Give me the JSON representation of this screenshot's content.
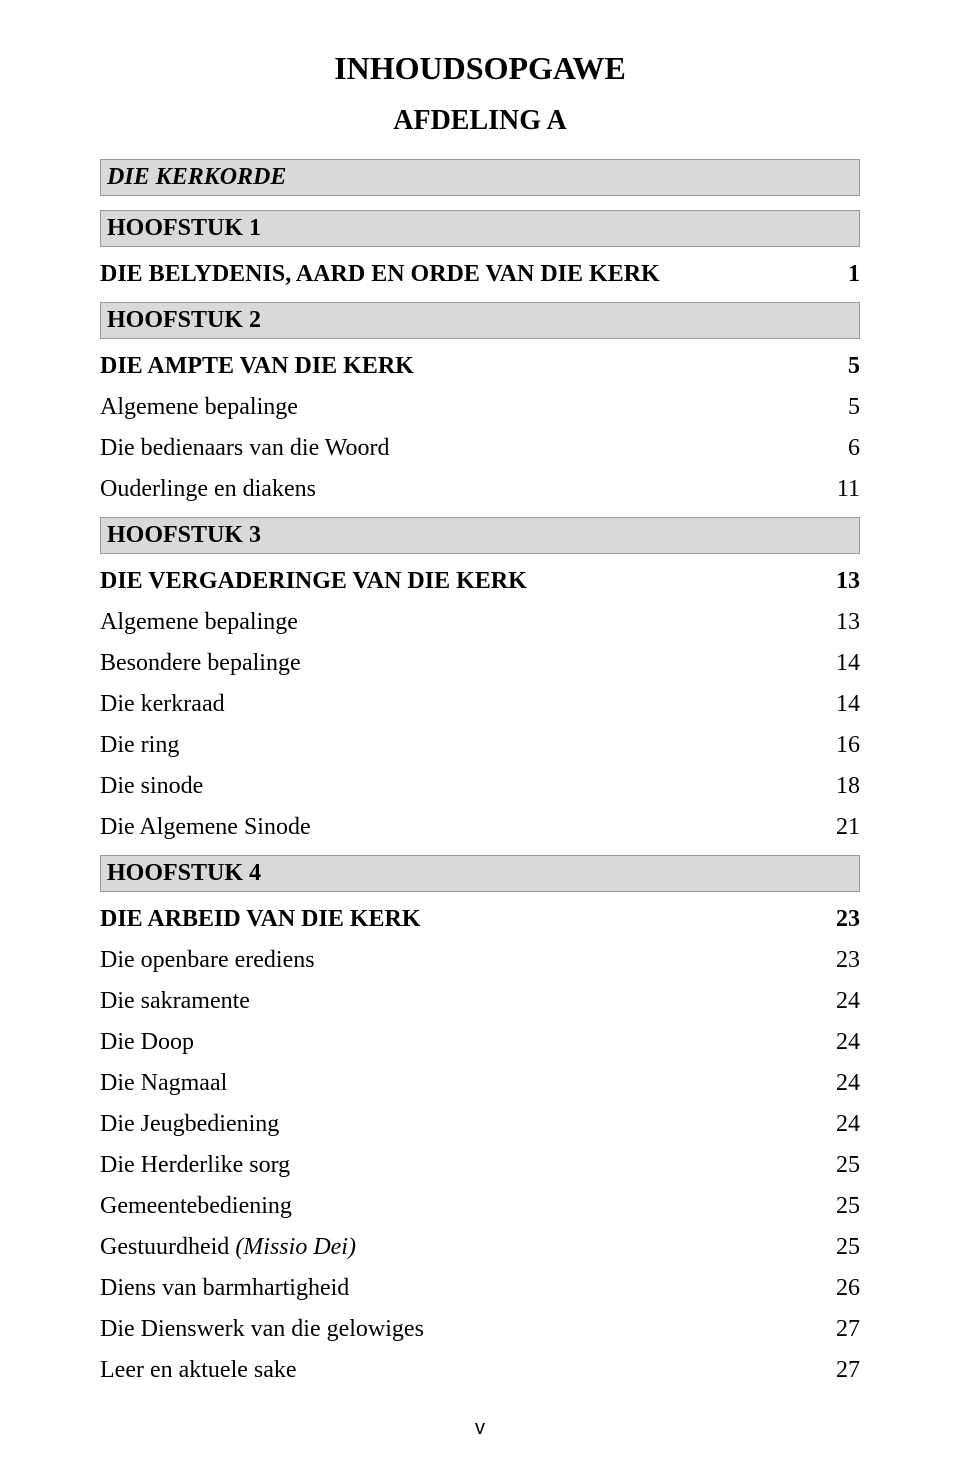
{
  "colors": {
    "background": "#ffffff",
    "text": "#000000",
    "header_fill": "#d9d9d9",
    "header_border": "#999999"
  },
  "typography": {
    "body_family": "Times New Roman",
    "title_size_pt": 24,
    "subtitle_size_pt": 21,
    "header_size_pt": 18,
    "row_size_pt": 18,
    "footer_family": "Arial",
    "footer_size_pt": 15
  },
  "title": "INHOUDSOPGAWE",
  "subtitle": "AFDELING A",
  "section_header": "DIE KERKORDE",
  "chapters": [
    {
      "header": "HOOFSTUK 1",
      "rows": [
        {
          "label": "DIE BELYDENIS, AARD EN ORDE VAN DIE KERK",
          "page": "1",
          "bold": true
        }
      ]
    },
    {
      "header": "HOOFSTUK 2",
      "rows": [
        {
          "label": "DIE AMPTE VAN DIE KERK",
          "page": "5",
          "bold": true
        },
        {
          "label": "Algemene bepalinge",
          "page": "5",
          "bold": false
        },
        {
          "label": "Die bedienaars van die Woord",
          "page": "6",
          "bold": false
        },
        {
          "label": "Ouderlinge en diakens",
          "page": "11",
          "bold": false
        }
      ]
    },
    {
      "header": "HOOFSTUK 3",
      "rows": [
        {
          "label": "DIE VERGADERINGE VAN DIE KERK",
          "page": "13",
          "bold": true
        },
        {
          "label": "Algemene bepalinge",
          "page": "13",
          "bold": false
        },
        {
          "label": "Besondere bepalinge",
          "page": "14",
          "bold": false
        },
        {
          "label": "Die kerkraad",
          "page": "14",
          "bold": false
        },
        {
          "label": "Die ring",
          "page": "16",
          "bold": false
        },
        {
          "label": "Die sinode",
          "page": "18",
          "bold": false
        },
        {
          "label": "Die Algemene Sinode",
          "page": "21",
          "bold": false
        }
      ]
    },
    {
      "header": "HOOFSTUK 4",
      "rows": [
        {
          "label": "DIE ARBEID VAN DIE KERK",
          "page": "23",
          "bold": true
        },
        {
          "label": "Die openbare erediens",
          "page": "23",
          "bold": false
        },
        {
          "label": "Die sakramente",
          "page": "24",
          "bold": false
        },
        {
          "label": "Die Doop",
          "page": "24",
          "bold": false
        },
        {
          "label": "Die Nagmaal",
          "page": "24",
          "bold": false
        },
        {
          "label": "Die Jeugbediening",
          "page": "24",
          "bold": false
        },
        {
          "label": "Die Herderlike sorg",
          "page": "25",
          "bold": false
        },
        {
          "label": "Gemeentebediening",
          "page": "25",
          "bold": false
        },
        {
          "label_prefix": "Gestuurdheid ",
          "label_italic": "(Missio Dei)",
          "page": "25",
          "bold": false,
          "mixed": true
        },
        {
          "label": "Diens van barmhartigheid",
          "page": "26",
          "bold": false
        },
        {
          "label": "Die Dienswerk van die gelowiges",
          "page": "27",
          "bold": false
        },
        {
          "label": "Leer en aktuele sake",
          "page": "27",
          "bold": false
        }
      ]
    }
  ],
  "footer": "v"
}
